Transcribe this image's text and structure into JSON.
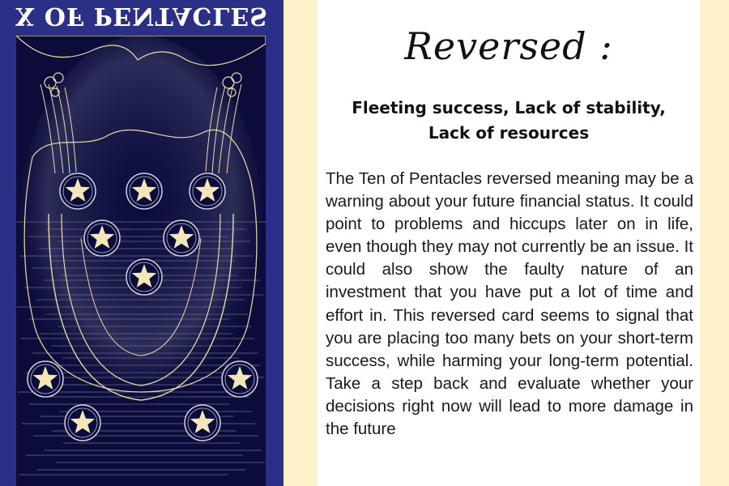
{
  "card": {
    "title": "X OF PENTACLES",
    "art_icon": "ten-of-pentacles-card-illustration",
    "colors": {
      "border": "#2b2f85",
      "art_background": "#0b0c3a",
      "line": "#e8dcae"
    },
    "pentacle_count": 10
  },
  "text": {
    "heading": "Reversed :",
    "keywords_line1": "Fleeting success, Lack of stability,",
    "keywords_line2": "Lack of resources",
    "description": "The Ten of Pentacles reversed meaning may be a warning about your future financial status. It could point to problems and hiccups later on in life, even though they may not currently be an issue. It could also show the faulty nature of an investment that you have put a lot of time and effort in.  This reversed card seems to signal that you are placing too many bets on your short-term success, while harming your long-term potential. Take a step back and evaluate whether your decisions right now will lead to more damage in the future"
  },
  "colors": {
    "background": "#fdf1c7",
    "panel": "#ffffff"
  }
}
